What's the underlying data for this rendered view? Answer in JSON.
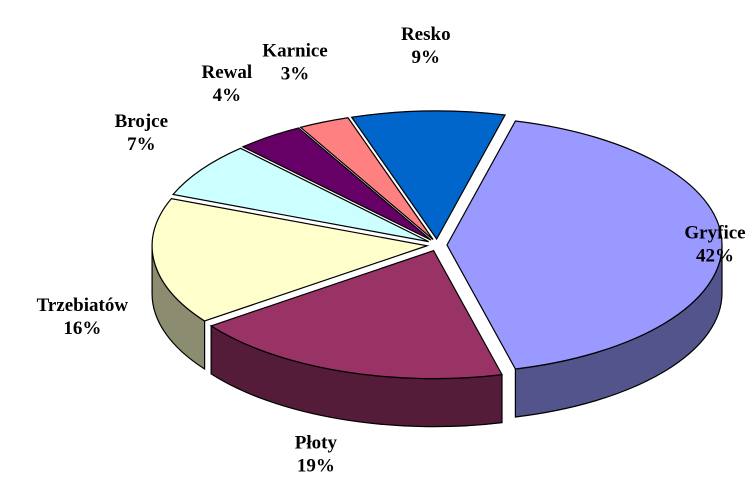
{
  "chart_data": {
    "type": "pie",
    "categories": [
      "Gryfice",
      "Płoty",
      "Trzebiatów",
      "Brojce",
      "Rewal",
      "Karnice",
      "Resko"
    ],
    "values": [
      42,
      19,
      16,
      7,
      4,
      3,
      9
    ],
    "value_labels": [
      "42%",
      "19%",
      "16%",
      "7%",
      "4%",
      "3%",
      "9%"
    ],
    "colors": [
      "#9999ff",
      "#993366",
      "#ffffcc",
      "#ccffff",
      "#660066",
      "#ff8080",
      "#0066cc"
    ]
  }
}
